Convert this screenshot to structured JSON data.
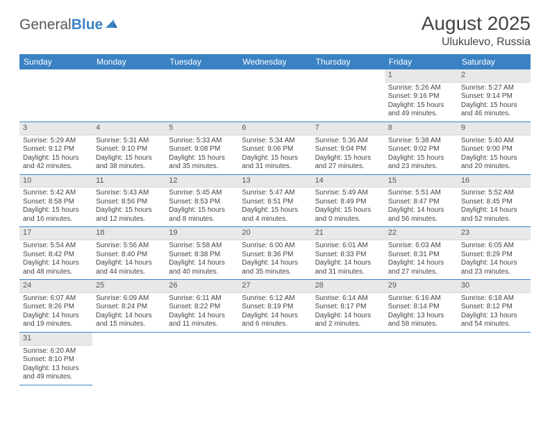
{
  "logo": {
    "part1": "General",
    "part2": "Blue"
  },
  "title": "August 2025",
  "location": "Ulukulevo, Russia",
  "colors": {
    "header_bg": "#3b82c4",
    "daynum_bg": "#e8e8e8",
    "rule": "#3b82c4"
  },
  "day_headers": [
    "Sunday",
    "Monday",
    "Tuesday",
    "Wednesday",
    "Thursday",
    "Friday",
    "Saturday"
  ],
  "weeks": [
    [
      null,
      null,
      null,
      null,
      null,
      {
        "n": "1",
        "sr": "5:26 AM",
        "ss": "9:16 PM",
        "dl": "15 hours and 49 minutes."
      },
      {
        "n": "2",
        "sr": "5:27 AM",
        "ss": "9:14 PM",
        "dl": "15 hours and 46 minutes."
      }
    ],
    [
      {
        "n": "3",
        "sr": "5:29 AM",
        "ss": "9:12 PM",
        "dl": "15 hours and 42 minutes."
      },
      {
        "n": "4",
        "sr": "5:31 AM",
        "ss": "9:10 PM",
        "dl": "15 hours and 38 minutes."
      },
      {
        "n": "5",
        "sr": "5:33 AM",
        "ss": "9:08 PM",
        "dl": "15 hours and 35 minutes."
      },
      {
        "n": "6",
        "sr": "5:34 AM",
        "ss": "9:06 PM",
        "dl": "15 hours and 31 minutes."
      },
      {
        "n": "7",
        "sr": "5:36 AM",
        "ss": "9:04 PM",
        "dl": "15 hours and 27 minutes."
      },
      {
        "n": "8",
        "sr": "5:38 AM",
        "ss": "9:02 PM",
        "dl": "15 hours and 23 minutes."
      },
      {
        "n": "9",
        "sr": "5:40 AM",
        "ss": "9:00 PM",
        "dl": "15 hours and 20 minutes."
      }
    ],
    [
      {
        "n": "10",
        "sr": "5:42 AM",
        "ss": "8:58 PM",
        "dl": "15 hours and 16 minutes."
      },
      {
        "n": "11",
        "sr": "5:43 AM",
        "ss": "8:56 PM",
        "dl": "15 hours and 12 minutes."
      },
      {
        "n": "12",
        "sr": "5:45 AM",
        "ss": "8:53 PM",
        "dl": "15 hours and 8 minutes."
      },
      {
        "n": "13",
        "sr": "5:47 AM",
        "ss": "8:51 PM",
        "dl": "15 hours and 4 minutes."
      },
      {
        "n": "14",
        "sr": "5:49 AM",
        "ss": "8:49 PM",
        "dl": "15 hours and 0 minutes."
      },
      {
        "n": "15",
        "sr": "5:51 AM",
        "ss": "8:47 PM",
        "dl": "14 hours and 56 minutes."
      },
      {
        "n": "16",
        "sr": "5:52 AM",
        "ss": "8:45 PM",
        "dl": "14 hours and 52 minutes."
      }
    ],
    [
      {
        "n": "17",
        "sr": "5:54 AM",
        "ss": "8:42 PM",
        "dl": "14 hours and 48 minutes."
      },
      {
        "n": "18",
        "sr": "5:56 AM",
        "ss": "8:40 PM",
        "dl": "14 hours and 44 minutes."
      },
      {
        "n": "19",
        "sr": "5:58 AM",
        "ss": "8:38 PM",
        "dl": "14 hours and 40 minutes."
      },
      {
        "n": "20",
        "sr": "6:00 AM",
        "ss": "8:36 PM",
        "dl": "14 hours and 35 minutes."
      },
      {
        "n": "21",
        "sr": "6:01 AM",
        "ss": "8:33 PM",
        "dl": "14 hours and 31 minutes."
      },
      {
        "n": "22",
        "sr": "6:03 AM",
        "ss": "8:31 PM",
        "dl": "14 hours and 27 minutes."
      },
      {
        "n": "23",
        "sr": "6:05 AM",
        "ss": "8:29 PM",
        "dl": "14 hours and 23 minutes."
      }
    ],
    [
      {
        "n": "24",
        "sr": "6:07 AM",
        "ss": "8:26 PM",
        "dl": "14 hours and 19 minutes."
      },
      {
        "n": "25",
        "sr": "6:09 AM",
        "ss": "8:24 PM",
        "dl": "14 hours and 15 minutes."
      },
      {
        "n": "26",
        "sr": "6:11 AM",
        "ss": "8:22 PM",
        "dl": "14 hours and 11 minutes."
      },
      {
        "n": "27",
        "sr": "6:12 AM",
        "ss": "8:19 PM",
        "dl": "14 hours and 6 minutes."
      },
      {
        "n": "28",
        "sr": "6:14 AM",
        "ss": "8:17 PM",
        "dl": "14 hours and 2 minutes."
      },
      {
        "n": "29",
        "sr": "6:16 AM",
        "ss": "8:14 PM",
        "dl": "13 hours and 58 minutes."
      },
      {
        "n": "30",
        "sr": "6:18 AM",
        "ss": "8:12 PM",
        "dl": "13 hours and 54 minutes."
      }
    ],
    [
      {
        "n": "31",
        "sr": "6:20 AM",
        "ss": "8:10 PM",
        "dl": "13 hours and 49 minutes."
      },
      null,
      null,
      null,
      null,
      null,
      null
    ]
  ],
  "labels": {
    "sunrise": "Sunrise:",
    "sunset": "Sunset:",
    "daylight": "Daylight:"
  }
}
